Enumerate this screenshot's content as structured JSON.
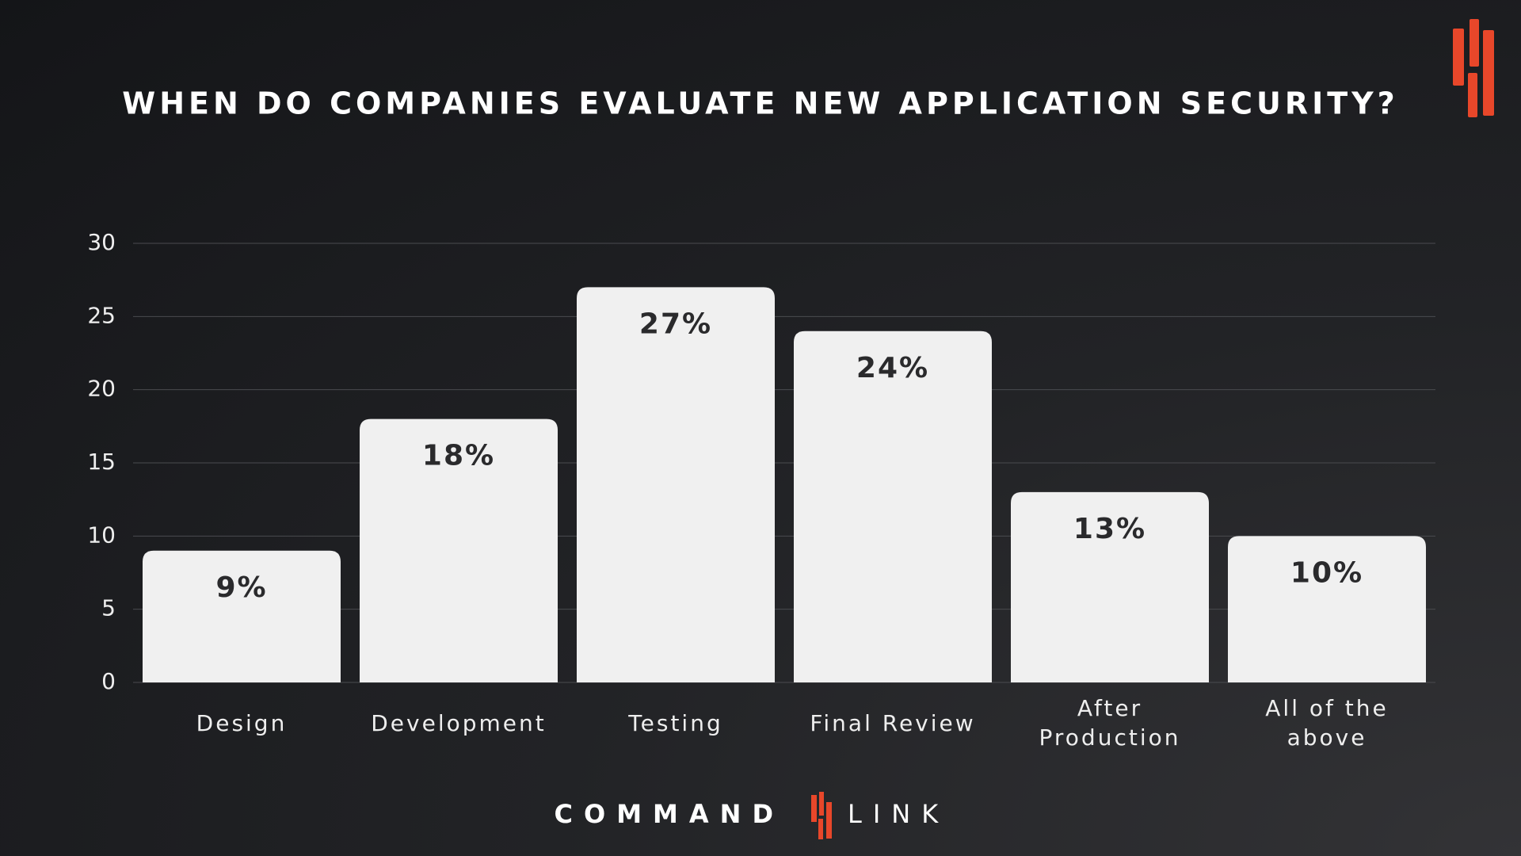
{
  "chart_data": {
    "type": "bar",
    "title": "WHEN DO COMPANIES EVALUATE NEW APPLICATION SECURITY?",
    "categories": [
      "Design",
      "Development",
      "Testing",
      "Final Review",
      "After Production",
      "All of the above"
    ],
    "values": [
      9,
      18,
      27,
      24,
      13,
      10
    ],
    "value_labels": [
      "9%",
      "18%",
      "27%",
      "24%",
      "13%",
      "10%"
    ],
    "color": "#f0f0f0",
    "ylim": [
      0,
      30
    ],
    "yticks": [
      0,
      5,
      10,
      15,
      20,
      25,
      30
    ],
    "grid": true
  },
  "brand": {
    "left": "COMMAND",
    "right": "LINK"
  }
}
